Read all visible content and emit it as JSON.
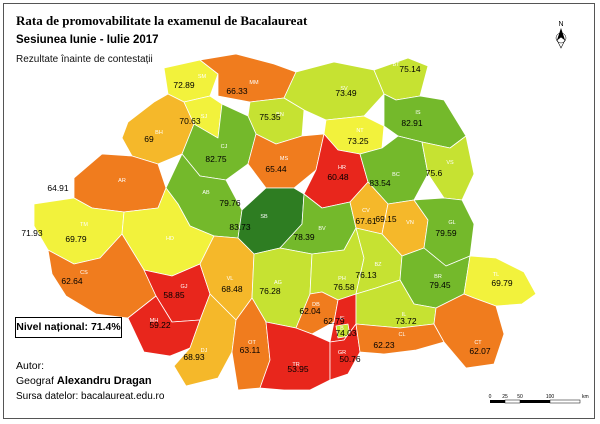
{
  "title": "Rata de promovabilitate la examenul de Bacalaureat",
  "subtitle": "Sesiunea Iunie - Iulie 2017",
  "note": "Rezultate înainte de contestații",
  "nivel": "Nivel național: 71.4%",
  "author_label": "Autor:",
  "author_role": "Geograf",
  "author_name": "Alexandru Dragan",
  "source": "Sursa datelor: bacalaureat.edu.ro",
  "north_label": "N",
  "scale": {
    "ticks": [
      "0",
      "25",
      "50",
      "100"
    ],
    "unit": "km"
  },
  "colors": {
    "low": "#e8261c",
    "mid_low": "#f07c1e",
    "mid": "#f5b82a",
    "mid_high": "#f2f23c",
    "high": "#c6e232",
    "very_high": "#74b92b",
    "top": "#2e7d22"
  },
  "counties": [
    {
      "code": "SM",
      "value": "72.89",
      "color": "#f2f23c"
    },
    {
      "code": "MM",
      "value": "66.33",
      "color": "#f07c1e"
    },
    {
      "code": "SV",
      "value": "73.49",
      "color": "#c6e232"
    },
    {
      "code": "BT",
      "value": "75.14",
      "color": "#c6e232"
    },
    {
      "code": "BH",
      "value": "69",
      "color": "#f5b82a"
    },
    {
      "code": "SJ",
      "value": "70.63",
      "color": "#f2f23c"
    },
    {
      "code": "BN",
      "value": "75.35",
      "color": "#c6e232"
    },
    {
      "code": "NT",
      "value": "73.25",
      "color": "#f2f23c"
    },
    {
      "code": "IS",
      "value": "82.91",
      "color": "#74b92b"
    },
    {
      "code": "CJ",
      "value": "82.75",
      "color": "#74b92b"
    },
    {
      "code": "MS",
      "value": "65.44",
      "color": "#f07c1e"
    },
    {
      "code": "HR",
      "value": "60.48",
      "color": "#e8261c"
    },
    {
      "code": "BC",
      "value": "83.54",
      "color": "#74b92b"
    },
    {
      "code": "VS",
      "value": "75.6",
      "color": "#c6e232"
    },
    {
      "code": "AR",
      "value": "64.91",
      "color": "#f07c1e"
    },
    {
      "code": "AB",
      "value": "79.76",
      "color": "#74b92b"
    },
    {
      "code": "SB",
      "value": "83.73",
      "color": "#2e7d22"
    },
    {
      "code": "BV",
      "value": "78.39",
      "color": "#74b92b"
    },
    {
      "code": "CV",
      "value": "67.61",
      "color": "#f5b82a"
    },
    {
      "code": "VN",
      "value": "69.15",
      "color": "#f5b82a"
    },
    {
      "code": "GL",
      "value": "79.59",
      "color": "#74b92b"
    },
    {
      "code": "TM",
      "value": "71.93",
      "color": "#f2f23c"
    },
    {
      "code": "HD",
      "value": "69.79",
      "color": "#f2f23c"
    },
    {
      "code": "CS",
      "value": "62.64",
      "color": "#f07c1e"
    },
    {
      "code": "GJ",
      "value": "58.85",
      "color": "#e8261c"
    },
    {
      "code": "VL",
      "value": "68.48",
      "color": "#f5b82a"
    },
    {
      "code": "AG",
      "value": "76.28",
      "color": "#c6e232"
    },
    {
      "code": "PH",
      "value": "76.58",
      "color": "#c6e232"
    },
    {
      "code": "BZ",
      "value": "76.13",
      "color": "#c6e232"
    },
    {
      "code": "BR",
      "value": "79.45",
      "color": "#74b92b"
    },
    {
      "code": "TL",
      "value": "69.79",
      "color": "#f2f23c"
    },
    {
      "code": "MH",
      "value": "59.22",
      "color": "#e8261c"
    },
    {
      "code": "DB",
      "value": "62.04",
      "color": "#f07c1e"
    },
    {
      "code": "IF",
      "value": "62.79",
      "color": "#e8261c"
    },
    {
      "code": "B",
      "value": "74.03",
      "color": "#c6e232"
    },
    {
      "code": "IL",
      "value": "73.72",
      "color": "#c6e232"
    },
    {
      "code": "DJ",
      "value": "68.93",
      "color": "#f5b82a"
    },
    {
      "code": "OT",
      "value": "63.11",
      "color": "#f07c1e"
    },
    {
      "code": "TR",
      "value": "53.95",
      "color": "#e8261c"
    },
    {
      "code": "GR",
      "value": "50.76",
      "color": "#e8261c"
    },
    {
      "code": "CL",
      "value": "62.23",
      "color": "#f07c1e"
    },
    {
      "code": "CT",
      "value": "62.07",
      "color": "#f07c1e"
    }
  ]
}
